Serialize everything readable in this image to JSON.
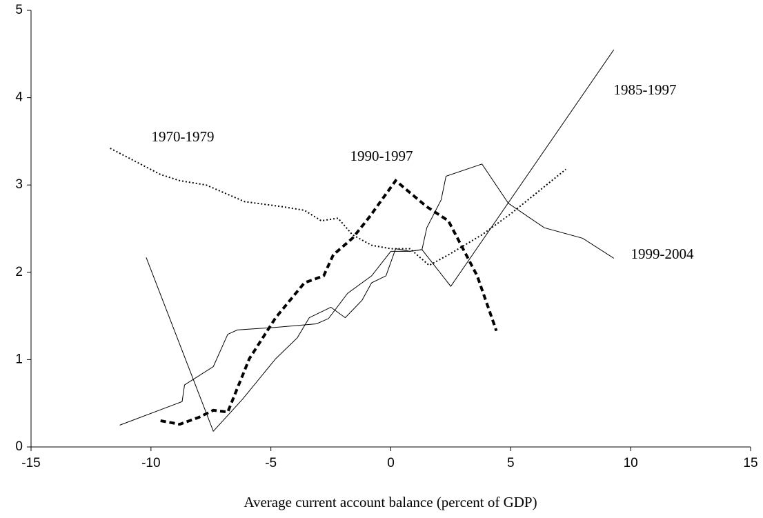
{
  "chart_data": {
    "type": "line",
    "x_label": "Average current account balance (percent of GDP)",
    "xlim": [
      -15,
      15
    ],
    "xticks": [
      -15,
      -10,
      -5,
      0,
      5,
      10,
      15
    ],
    "ylim": [
      0,
      5
    ],
    "yticks": [
      0,
      1,
      2,
      3,
      4,
      5
    ],
    "grid": false,
    "series": [
      {
        "name": "1970-1979",
        "color": "#000000",
        "line_style": "dotted",
        "x": [
          -11.7,
          -9.6,
          -8.8,
          -7.7,
          -6.1,
          -4.5,
          -3.6,
          -2.9,
          -2.2,
          -1.6,
          -0.8,
          0.0,
          0.8,
          1.6,
          2.4,
          3.8,
          5.0,
          7.3
        ],
        "values": [
          3.42,
          3.12,
          3.05,
          3.0,
          2.81,
          2.75,
          2.71,
          2.59,
          2.62,
          2.43,
          2.31,
          2.27,
          2.27,
          2.08,
          2.2,
          2.43,
          2.67,
          3.18
        ]
      },
      {
        "name": "1990-1997",
        "color": "#000000",
        "line_style": "dashed",
        "x": [
          -9.6,
          -8.8,
          -8.0,
          -7.4,
          -6.8,
          -5.9,
          -4.8,
          -3.6,
          -2.8,
          -2.4,
          -1.6,
          -0.9,
          0.2,
          1.5,
          2.4,
          3.6,
          4.4
        ],
        "values": [
          0.3,
          0.26,
          0.34,
          0.42,
          0.4,
          1.01,
          1.48,
          1.88,
          1.96,
          2.2,
          2.39,
          2.63,
          3.05,
          2.75,
          2.59,
          1.96,
          1.33
        ]
      },
      {
        "name": "1985-1997",
        "color": "#000000",
        "line_style": "solid",
        "x": [
          -10.2,
          -7.4,
          -6.2,
          -4.8,
          -3.9,
          -3.4,
          -2.5,
          -1.9,
          -1.2,
          -0.8,
          -0.2,
          0.2,
          0.8,
          1.3,
          2.5,
          9.3
        ],
        "values": [
          2.17,
          0.18,
          0.54,
          1.01,
          1.25,
          1.48,
          1.6,
          1.48,
          1.68,
          1.88,
          1.96,
          2.27,
          2.24,
          2.26,
          1.84,
          4.55
        ]
      },
      {
        "name": "1999-2004",
        "color": "#000000",
        "line_style": "solid",
        "x": [
          -11.3,
          -8.7,
          -8.6,
          -7.4,
          -6.8,
          -6.4,
          -4.8,
          -3.1,
          -2.6,
          -1.8,
          -0.8,
          0.0,
          0.8,
          1.3,
          1.5,
          2.1,
          2.3,
          3.8,
          4.9,
          6.4,
          8.0,
          9.3
        ],
        "values": [
          0.25,
          0.52,
          0.71,
          0.92,
          1.29,
          1.34,
          1.37,
          1.41,
          1.47,
          1.76,
          1.96,
          2.24,
          2.24,
          2.26,
          2.51,
          2.83,
          3.1,
          3.24,
          2.79,
          2.51,
          2.39,
          2.16
        ]
      }
    ]
  }
}
